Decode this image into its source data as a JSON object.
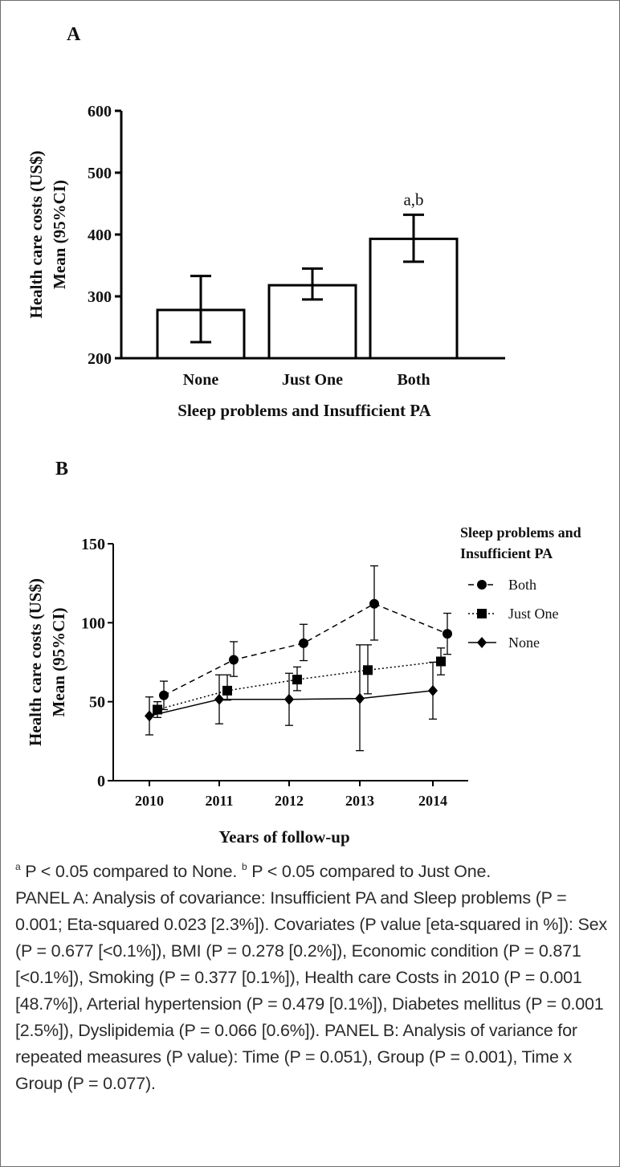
{
  "chart_data": [
    {
      "panel_label": "A",
      "type": "bar",
      "title": "",
      "xlabel": "Sleep problems and Insufficient PA",
      "ylabel_lines": [
        "Health care costs (US$)",
        "Mean (95%CI)"
      ],
      "ylim": [
        200,
        600
      ],
      "yticks": [
        200,
        300,
        400,
        500,
        600
      ],
      "categories": [
        "None",
        "Just One",
        "Both"
      ],
      "values": [
        278,
        318,
        393
      ],
      "ci_low": [
        226,
        295,
        356
      ],
      "ci_high": [
        333,
        345,
        432
      ],
      "annotations": [
        "",
        "",
        "a,b"
      ]
    },
    {
      "panel_label": "B",
      "type": "line",
      "xlabel": "Years of follow-up",
      "ylabel_lines": [
        "Health care costs (US$)",
        "Mean (95%CI)"
      ],
      "ylim": [
        0,
        150
      ],
      "yticks": [
        0,
        50,
        100,
        150
      ],
      "x": [
        "2010",
        "2011",
        "2012",
        "2013",
        "2014"
      ],
      "legend_title_lines": [
        "Sleep problems and",
        "Insufficient PA"
      ],
      "legend_position": "top-right",
      "series": [
        {
          "name": "Both",
          "marker": "circle",
          "line": "dashed",
          "values": [
            54,
            76.5,
            87,
            112,
            93
          ],
          "ci_low": [
            45,
            66,
            76,
            89,
            80
          ],
          "ci_high": [
            63,
            88,
            99,
            136,
            106
          ]
        },
        {
          "name": "Just One",
          "marker": "square",
          "line": "dotted",
          "values": [
            45,
            57,
            64,
            70,
            75.5
          ],
          "ci_low": [
            40,
            51,
            57,
            55,
            67
          ],
          "ci_high": [
            50,
            67,
            72,
            86,
            84
          ]
        },
        {
          "name": "None",
          "marker": "diamond",
          "line": "solid",
          "values": [
            41,
            51.5,
            51.5,
            52,
            57
          ],
          "ci_low": [
            29,
            36,
            35,
            19,
            39
          ],
          "ci_high": [
            53,
            67,
            68,
            86,
            75
          ]
        }
      ]
    }
  ],
  "caption": {
    "line1_sup_a": "a",
    "line1_text_a": " P < 0.05 compared to None. ",
    "line1_sup_b": "b",
    "line1_text_b": " P < 0.05 compared to Just One.",
    "body": "PANEL A: Analysis of covariance: Insufficient PA and Sleep problems (P = 0.001; Eta-squared 0.023 [2.3%]). Covariates (P value [eta-squared in %]): Sex (P = 0.677 [<0.1%]), BMI (P = 0.278 [0.2%]), Economic condition (P = 0.871 [<0.1%]), Smoking (P = 0.377 [0.1%]), Health care Costs in 2010 (P = 0.001 [48.7%]), Arterial hypertension (P = 0.479 [0.1%]), Diabetes mellitus (P = 0.001 [2.5%]), Dyslipidemia (P = 0.066 [0.6%]). PANEL B: Analysis of variance for repeated measures (P value): Time (P = 0.051), Group (P = 0.001), Time x Group (P = 0.077)."
  }
}
